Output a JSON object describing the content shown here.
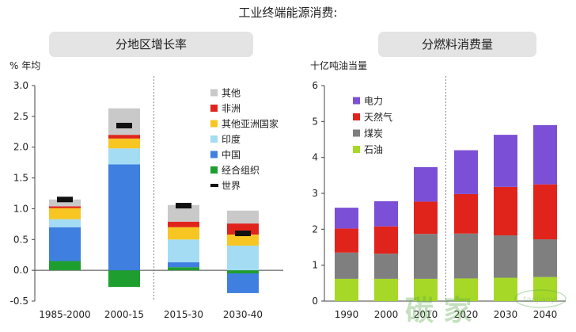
{
  "title": "工业终端能源消费:",
  "chart_data": [
    {
      "type": "bar",
      "stacked": true,
      "title": "分地区增长率",
      "ylabel": "% 年均",
      "ylim": [
        -0.5,
        3.0
      ],
      "yticks": [
        -0.5,
        0.0,
        0.5,
        1.0,
        1.5,
        2.0,
        2.5,
        3.0
      ],
      "ytick_labels": [
        "-0.5",
        "0.0",
        "0.5",
        "1.0",
        "1.5",
        "2.0",
        "2.5",
        "3.0"
      ],
      "categories": [
        "1985-2000",
        "2000-15",
        "2015-30",
        "2030-40"
      ],
      "series": [
        {
          "name": "经合组织",
          "color": "#1e9e2e",
          "values": [
            0.15,
            -0.27,
            0.05,
            -0.05
          ]
        },
        {
          "name": "中国",
          "color": "#3f7fe0",
          "values": [
            0.55,
            1.72,
            0.08,
            -0.32
          ]
        },
        {
          "name": "印度",
          "color": "#a4dcf4",
          "values": [
            0.13,
            0.26,
            0.37,
            0.4
          ]
        },
        {
          "name": "其他亚洲国家",
          "color": "#f7c623",
          "values": [
            0.18,
            0.16,
            0.2,
            0.18
          ]
        },
        {
          "name": "非洲",
          "color": "#e0241c",
          "values": [
            0.03,
            0.06,
            0.09,
            0.18
          ]
        },
        {
          "name": "其他",
          "color": "#c9c9c9",
          "values": [
            0.11,
            0.43,
            0.27,
            0.21
          ]
        }
      ],
      "marker_series": {
        "name": "世界",
        "color": "#111111",
        "values": [
          1.15,
          2.35,
          1.05,
          0.6
        ]
      },
      "legend_order": [
        "其他",
        "非洲",
        "其他亚洲国家",
        "印度",
        "中国",
        "经合组织",
        "世界"
      ],
      "divider_after_category": "2000-15"
    },
    {
      "type": "bar",
      "stacked": true,
      "title": "分燃料消费量",
      "ylabel": "十亿吨油当量",
      "ylim": [
        0,
        6
      ],
      "yticks": [
        0,
        1,
        2,
        3,
        4,
        5,
        6
      ],
      "ytick_labels": [
        "0",
        "1",
        "2",
        "3",
        "4",
        "5",
        "6"
      ],
      "categories": [
        "1990",
        "2000",
        "2010",
        "2020",
        "2030",
        "2040"
      ],
      "series": [
        {
          "name": "石油",
          "color": "#a6d827",
          "values": [
            0.62,
            0.62,
            0.62,
            0.63,
            0.65,
            0.67
          ]
        },
        {
          "name": "煤炭",
          "color": "#7f7f7f",
          "values": [
            0.73,
            0.7,
            1.25,
            1.25,
            1.18,
            1.05
          ]
        },
        {
          "name": "天然气",
          "color": "#e0241c",
          "values": [
            0.67,
            0.76,
            0.9,
            1.1,
            1.35,
            1.53
          ]
        },
        {
          "name": "电力",
          "color": "#7b4fd6",
          "values": [
            0.58,
            0.7,
            0.96,
            1.22,
            1.45,
            1.65
          ]
        }
      ],
      "legend_order": [
        "电力",
        "天然气",
        "煤炭",
        "石油"
      ],
      "divider_after_category": "2010"
    }
  ],
  "watermark": {
    "text": "碳 家",
    "subtext": "tanjiaoyi"
  }
}
